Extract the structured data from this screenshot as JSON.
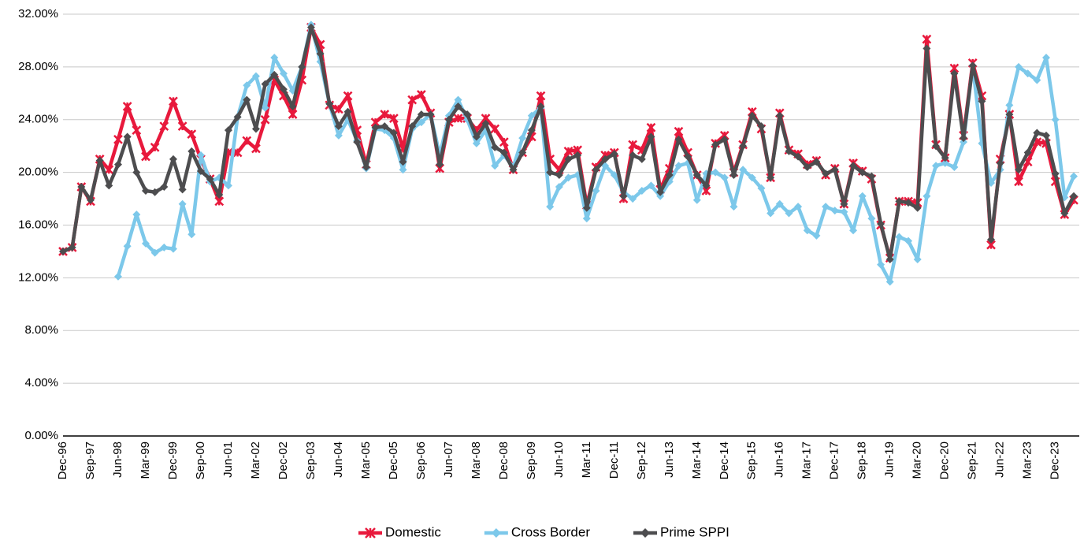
{
  "chart_data": {
    "type": "line",
    "categories": [
      "Dec-96",
      null,
      null,
      "Sep-97",
      null,
      null,
      "Jun-98",
      null,
      null,
      "Mar-99",
      null,
      null,
      "Dec-99",
      null,
      null,
      "Sep-00",
      null,
      null,
      "Jun-01",
      null,
      null,
      "Mar-02",
      null,
      null,
      "Dec-02",
      null,
      null,
      "Sep-03",
      null,
      null,
      "Jun-04",
      null,
      null,
      "Mar-05",
      null,
      null,
      "Dec-05",
      null,
      null,
      "Sep-06",
      null,
      null,
      "Jun-07",
      null,
      null,
      "Mar-08",
      null,
      null,
      "Dec-08",
      null,
      null,
      "Sep-09",
      null,
      null,
      "Jun-10",
      null,
      null,
      "Mar-11",
      null,
      null,
      "Dec-11",
      null,
      null,
      "Sep-12",
      null,
      null,
      "Jun-13",
      null,
      null,
      "Mar-14",
      null,
      null,
      "Dec-14",
      null,
      null,
      "Sep-15",
      null,
      null,
      "Jun-16",
      null,
      null,
      "Mar-17",
      null,
      null,
      "Dec-17",
      null,
      null,
      "Sep-18",
      null,
      null,
      "Jun-19",
      null,
      null,
      "Mar-20",
      null,
      null,
      "Dec-20",
      null,
      null,
      "Sep-21",
      null,
      null,
      "Jun-22",
      null,
      null,
      "Mar-23",
      null,
      null,
      "Dec-23",
      null,
      null
    ],
    "series": [
      {
        "name": "Domestic",
        "color": "#e8193c",
        "marker": "x",
        "values": [
          14.0,
          14.3,
          18.9,
          17.8,
          21.0,
          20.2,
          22.5,
          25.0,
          23.2,
          21.2,
          21.9,
          23.5,
          25.4,
          23.5,
          22.9,
          21.0,
          19.5,
          17.8,
          21.5,
          21.5,
          22.4,
          21.8,
          24.0,
          27.0,
          25.8,
          24.4,
          27.0,
          31.0,
          29.7,
          25.1,
          24.8,
          25.8,
          23.2,
          20.6,
          23.8,
          24.4,
          24.1,
          21.8,
          25.5,
          25.9,
          24.5,
          20.3,
          23.8,
          24.1,
          24.1,
          23.2,
          24.1,
          23.3,
          22.3,
          20.2,
          21.5,
          22.7,
          25.8,
          21.0,
          20.2,
          21.6,
          21.7,
          17.5,
          20.4,
          21.3,
          21.5,
          18.0,
          22.1,
          21.7,
          23.4,
          18.7,
          20.3,
          23.1,
          21.5,
          19.8,
          18.6,
          22.2,
          22.8,
          20.0,
          22.1,
          24.6,
          23.3,
          19.6,
          24.5,
          21.7,
          21.4,
          20.6,
          20.9,
          19.8,
          20.3,
          17.6,
          20.7,
          20.1,
          19.5,
          16.0,
          13.5,
          17.8,
          17.8,
          17.7,
          30.1,
          22.1,
          21.1,
          27.9,
          22.8,
          28.3,
          25.8,
          14.5,
          21.0,
          24.4,
          19.3,
          20.8,
          22.3,
          22.2,
          19.3,
          16.8,
          17.9
        ]
      },
      {
        "name": "Cross Border",
        "color": "#7cc8ea",
        "marker": "diamond",
        "values": [
          null,
          null,
          null,
          null,
          null,
          null,
          12.1,
          14.4,
          16.8,
          14.6,
          13.9,
          14.3,
          14.2,
          17.6,
          15.3,
          21.3,
          19.3,
          19.6,
          19.0,
          24.2,
          26.6,
          27.3,
          24.9,
          28.7,
          27.5,
          26.2,
          28.0,
          31.2,
          28.4,
          25.2,
          22.8,
          24.0,
          22.4,
          20.3,
          23.3,
          23.2,
          22.6,
          20.2,
          23.3,
          23.8,
          24.4,
          21.3,
          24.3,
          25.5,
          24.0,
          22.2,
          23.2,
          20.5,
          21.3,
          20.4,
          22.6,
          24.3,
          24.9,
          17.4,
          18.9,
          19.6,
          19.8,
          16.5,
          18.6,
          20.5,
          19.8,
          18.5,
          18.0,
          18.6,
          19.0,
          18.2,
          19.3,
          20.5,
          20.7,
          17.9,
          19.9,
          20.0,
          19.6,
          17.4,
          20.2,
          19.6,
          18.8,
          16.9,
          17.6,
          16.9,
          17.4,
          15.6,
          15.2,
          17.4,
          17.1,
          17.0,
          15.6,
          18.2,
          16.5,
          13.0,
          11.7,
          15.1,
          14.8,
          13.4,
          18.2,
          20.5,
          20.7,
          20.4,
          22.3,
          28.1,
          22.2,
          19.2,
          20.2,
          25.1,
          28.0,
          27.5,
          27.0,
          28.7,
          24.0,
          18.1,
          19.7
        ]
      },
      {
        "name": "Prime SPPI",
        "color": "#4d4d4f",
        "marker": "diamond",
        "values": [
          14.0,
          14.3,
          18.9,
          17.9,
          20.9,
          19.0,
          20.6,
          22.7,
          20.0,
          18.6,
          18.5,
          18.9,
          21.0,
          18.7,
          21.6,
          20.1,
          19.5,
          18.3,
          23.2,
          24.2,
          25.5,
          23.3,
          26.7,
          27.4,
          26.3,
          25.0,
          28.0,
          31.0,
          29.0,
          25.2,
          23.5,
          24.6,
          22.3,
          20.4,
          23.4,
          23.5,
          23.0,
          20.8,
          23.5,
          24.4,
          24.4,
          20.6,
          24.0,
          25.0,
          24.4,
          22.7,
          23.7,
          21.9,
          21.5,
          20.2,
          21.5,
          23.2,
          25.0,
          20.0,
          19.8,
          21.0,
          21.3,
          17.3,
          20.2,
          21.0,
          21.4,
          18.2,
          21.3,
          21.0,
          22.7,
          18.5,
          19.8,
          22.5,
          21.2,
          19.8,
          19.0,
          22.1,
          22.5,
          19.8,
          22.0,
          24.3,
          23.5,
          19.6,
          24.3,
          21.6,
          21.2,
          20.4,
          20.8,
          19.9,
          20.2,
          17.6,
          20.5,
          20.0,
          19.7,
          16.1,
          13.4,
          17.8,
          17.7,
          17.3,
          29.4,
          22.0,
          21.1,
          27.5,
          22.6,
          28.1,
          25.4,
          14.9,
          20.7,
          24.4,
          20.2,
          21.5,
          23.0,
          22.8,
          19.9,
          16.9,
          18.2
        ]
      }
    ],
    "ylim": [
      0,
      32
    ],
    "yticks": [
      {
        "value": 0,
        "label": "0.00%"
      },
      {
        "value": 4,
        "label": "4.00%"
      },
      {
        "value": 8,
        "label": "8.00%"
      },
      {
        "value": 12,
        "label": "12.00%"
      },
      {
        "value": 16,
        "label": "16.00%"
      },
      {
        "value": 20,
        "label": "20.00%"
      },
      {
        "value": 24,
        "label": "24.00%"
      },
      {
        "value": 28,
        "label": "28.00%"
      },
      {
        "value": 32,
        "label": "32.00%"
      }
    ],
    "grid": true,
    "legend": "bottom"
  }
}
